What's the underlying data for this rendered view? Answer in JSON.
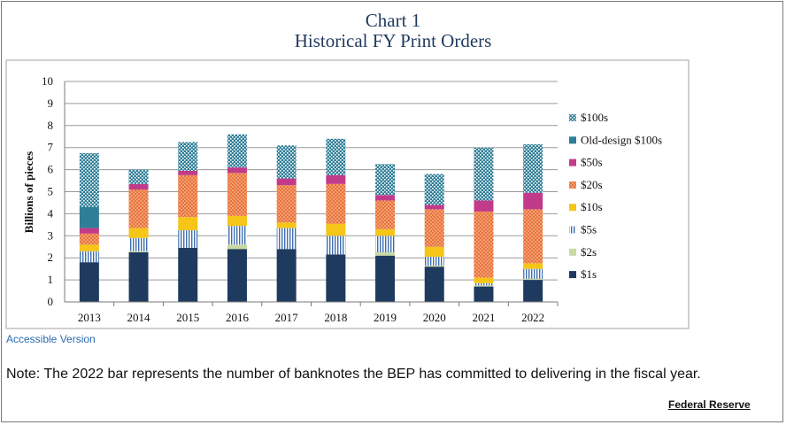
{
  "page": {
    "title_line1": "Chart 1",
    "title_line2": "Historical FY Print Orders",
    "accessible_link": "Accessible Version",
    "note": "Note: The 2022 bar represents the number of banknotes the BEP has committed to delivering in the fiscal year.",
    "source": "Federal Reserve"
  },
  "chart_data": {
    "type": "bar",
    "stacked": true,
    "title": "Chart 1 Historical FY Print Orders",
    "xlabel": "",
    "ylabel": "Billions of pieces",
    "ylim": [
      0,
      10
    ],
    "yticks": [
      "0",
      "1",
      "2",
      "3",
      "4",
      "5",
      "6",
      "7",
      "8",
      "9",
      "10"
    ],
    "grid": true,
    "legend_position": "right",
    "categories": [
      "2013",
      "2014",
      "2015",
      "2016",
      "2017",
      "2018",
      "2019",
      "2020",
      "2021",
      "2022"
    ],
    "series": [
      {
        "name": "$1s",
        "color": "#1f3a5f",
        "pattern": "solid",
        "values": [
          1.8,
          2.25,
          2.45,
          2.4,
          2.4,
          2.15,
          2.1,
          1.6,
          0.7,
          1.0
        ]
      },
      {
        "name": "$2s",
        "color": "#c9d9a4",
        "pattern": "solid",
        "values": [
          0.0,
          0.05,
          0.0,
          0.2,
          0.0,
          0.0,
          0.15,
          0.05,
          0.05,
          0.05
        ]
      },
      {
        "name": "$5s",
        "color": "#3f6fb0",
        "pattern": "vertical-lines",
        "values": [
          0.5,
          0.6,
          0.8,
          0.85,
          0.95,
          0.85,
          0.75,
          0.4,
          0.1,
          0.45
        ]
      },
      {
        "name": "$10s",
        "color": "#f5c518",
        "pattern": "solid",
        "values": [
          0.3,
          0.45,
          0.6,
          0.45,
          0.25,
          0.55,
          0.3,
          0.45,
          0.25,
          0.25
        ]
      },
      {
        "name": "$20s",
        "color": "#e8743b",
        "pattern": "dots",
        "values": [
          0.5,
          1.75,
          1.9,
          1.95,
          1.7,
          1.8,
          1.3,
          1.7,
          3.0,
          2.45
        ]
      },
      {
        "name": "$50s",
        "color": "#c23b8a",
        "pattern": "solid",
        "values": [
          0.25,
          0.25,
          0.2,
          0.25,
          0.3,
          0.4,
          0.25,
          0.2,
          0.5,
          0.75
        ]
      },
      {
        "name": "Old-design $100s",
        "color": "#2f7e97",
        "pattern": "solid",
        "values": [
          0.95,
          0.0,
          0.0,
          0.0,
          0.0,
          0.0,
          0.0,
          0.0,
          0.0,
          0.0
        ]
      },
      {
        "name": "$100s",
        "color": "#2f7e97",
        "pattern": "check",
        "values": [
          2.45,
          0.65,
          1.3,
          1.5,
          1.5,
          1.65,
          1.4,
          1.4,
          2.4,
          2.2
        ]
      }
    ]
  }
}
